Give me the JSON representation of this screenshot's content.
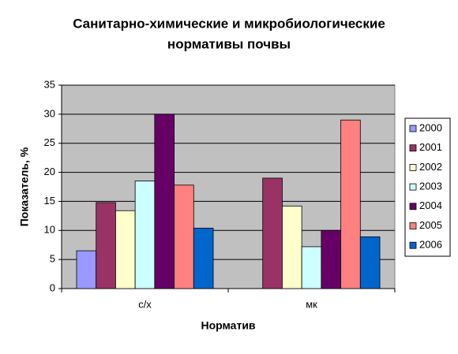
{
  "chart_data": {
    "type": "bar",
    "title": [
      "Санитарно-химические и микробиологические",
      "нормативы почвы"
    ],
    "x_label": "Норматив",
    "y_label": "Показатель, %",
    "categories": [
      "с/х",
      "мк"
    ],
    "series": [
      {
        "name": "2000",
        "color": "#9999ff",
        "values": [
          6.5,
          null
        ]
      },
      {
        "name": "2001",
        "color": "#993366",
        "values": [
          14.8,
          19
        ]
      },
      {
        "name": "2002",
        "color": "#ffffcc",
        "values": [
          13.4,
          14.2
        ]
      },
      {
        "name": "2003",
        "color": "#ccffff",
        "values": [
          18.5,
          7.2
        ]
      },
      {
        "name": "2004",
        "color": "#660066",
        "values": [
          30,
          10
        ]
      },
      {
        "name": "2005",
        "color": "#ff8080",
        "values": [
          17.8,
          29
        ]
      },
      {
        "name": "2006",
        "color": "#0066cc",
        "values": [
          10.4,
          8.9
        ]
      }
    ],
    "ylim": [
      0,
      35
    ],
    "yticks": [
      0,
      5,
      10,
      15,
      20,
      25,
      30,
      35
    ],
    "grid": true
  }
}
